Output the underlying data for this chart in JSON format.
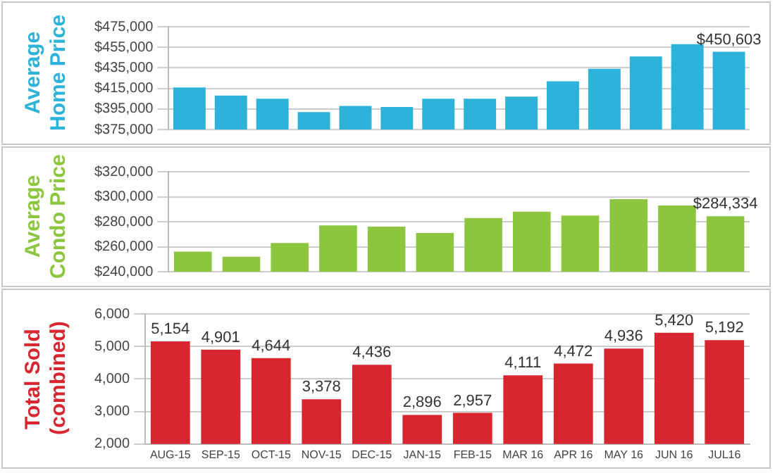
{
  "chart_data": [
    {
      "type": "bar",
      "ylabel": "Average Home Price",
      "categories": [
        null,
        null,
        null,
        null,
        null,
        null,
        null,
        null,
        null,
        null,
        null,
        null,
        null,
        null
      ],
      "color": "#2db3d9",
      "values": [
        416000,
        408000,
        405000,
        392000,
        398000,
        397000,
        405000,
        405000,
        407000,
        422000,
        434000,
        446000,
        458000,
        450603
      ],
      "value_labels": [
        null,
        null,
        null,
        null,
        null,
        null,
        null,
        null,
        null,
        null,
        null,
        null,
        null,
        "$450,603"
      ],
      "ylim": [
        375000,
        475000
      ],
      "yticks": [
        {
          "value": 375000,
          "label": "$375,000"
        },
        {
          "value": 395000,
          "label": "$395,000"
        },
        {
          "value": 415000,
          "label": "$415,000"
        },
        {
          "value": 435000,
          "label": "$435,000"
        },
        {
          "value": 455000,
          "label": "$455,000"
        },
        {
          "value": 475000,
          "label": "$475,000"
        }
      ],
      "grid": "y"
    },
    {
      "type": "bar",
      "ylabel": "Average Condo Price",
      "categories": [
        null,
        null,
        null,
        null,
        null,
        null,
        null,
        null,
        null,
        null,
        null,
        null
      ],
      "color": "#8cc63e",
      "values": [
        256000,
        252000,
        263000,
        277000,
        276000,
        271000,
        283000,
        288000,
        285000,
        298000,
        293000,
        284334
      ],
      "value_labels": [
        null,
        null,
        null,
        null,
        null,
        null,
        null,
        null,
        null,
        null,
        null,
        "$284,334"
      ],
      "ylim": [
        240000,
        320000
      ],
      "yticks": [
        {
          "value": 240000,
          "label": "$240,000"
        },
        {
          "value": 260000,
          "label": "$260,000"
        },
        {
          "value": 280000,
          "label": "$280,000"
        },
        {
          "value": 300000,
          "label": "$300,000"
        },
        {
          "value": 320000,
          "label": "$320,000"
        }
      ],
      "grid": "y"
    },
    {
      "type": "bar",
      "ylabel": "Total Sold (combined)",
      "categories": [
        "AUG-15",
        "SEP-15",
        "OCT-15",
        "NOV-15",
        "DEC-15",
        "JAN-15",
        "FEB-15",
        "MAR 16",
        "APR 16",
        "MAY 16",
        "JUN 16",
        "JUL16"
      ],
      "color": "#d7262f",
      "values": [
        5154,
        4901,
        4644,
        3378,
        4436,
        2896,
        2957,
        4111,
        4472,
        4936,
        5420,
        5192
      ],
      "value_labels": [
        "5,154",
        "4,901",
        "4,644",
        "3,378",
        "4,436",
        "2,896",
        "2,957",
        "4,111",
        "4,472",
        "4,936",
        "5,420",
        "5,192"
      ],
      "ylim": [
        2000,
        6000
      ],
      "yticks": [
        {
          "value": 2000,
          "label": "2,000"
        },
        {
          "value": 3000,
          "label": "3,000"
        },
        {
          "value": 4000,
          "label": "4,000"
        },
        {
          "value": 5000,
          "label": "5,000"
        },
        {
          "value": 6000,
          "label": "6,000"
        }
      ],
      "grid": "y"
    }
  ]
}
